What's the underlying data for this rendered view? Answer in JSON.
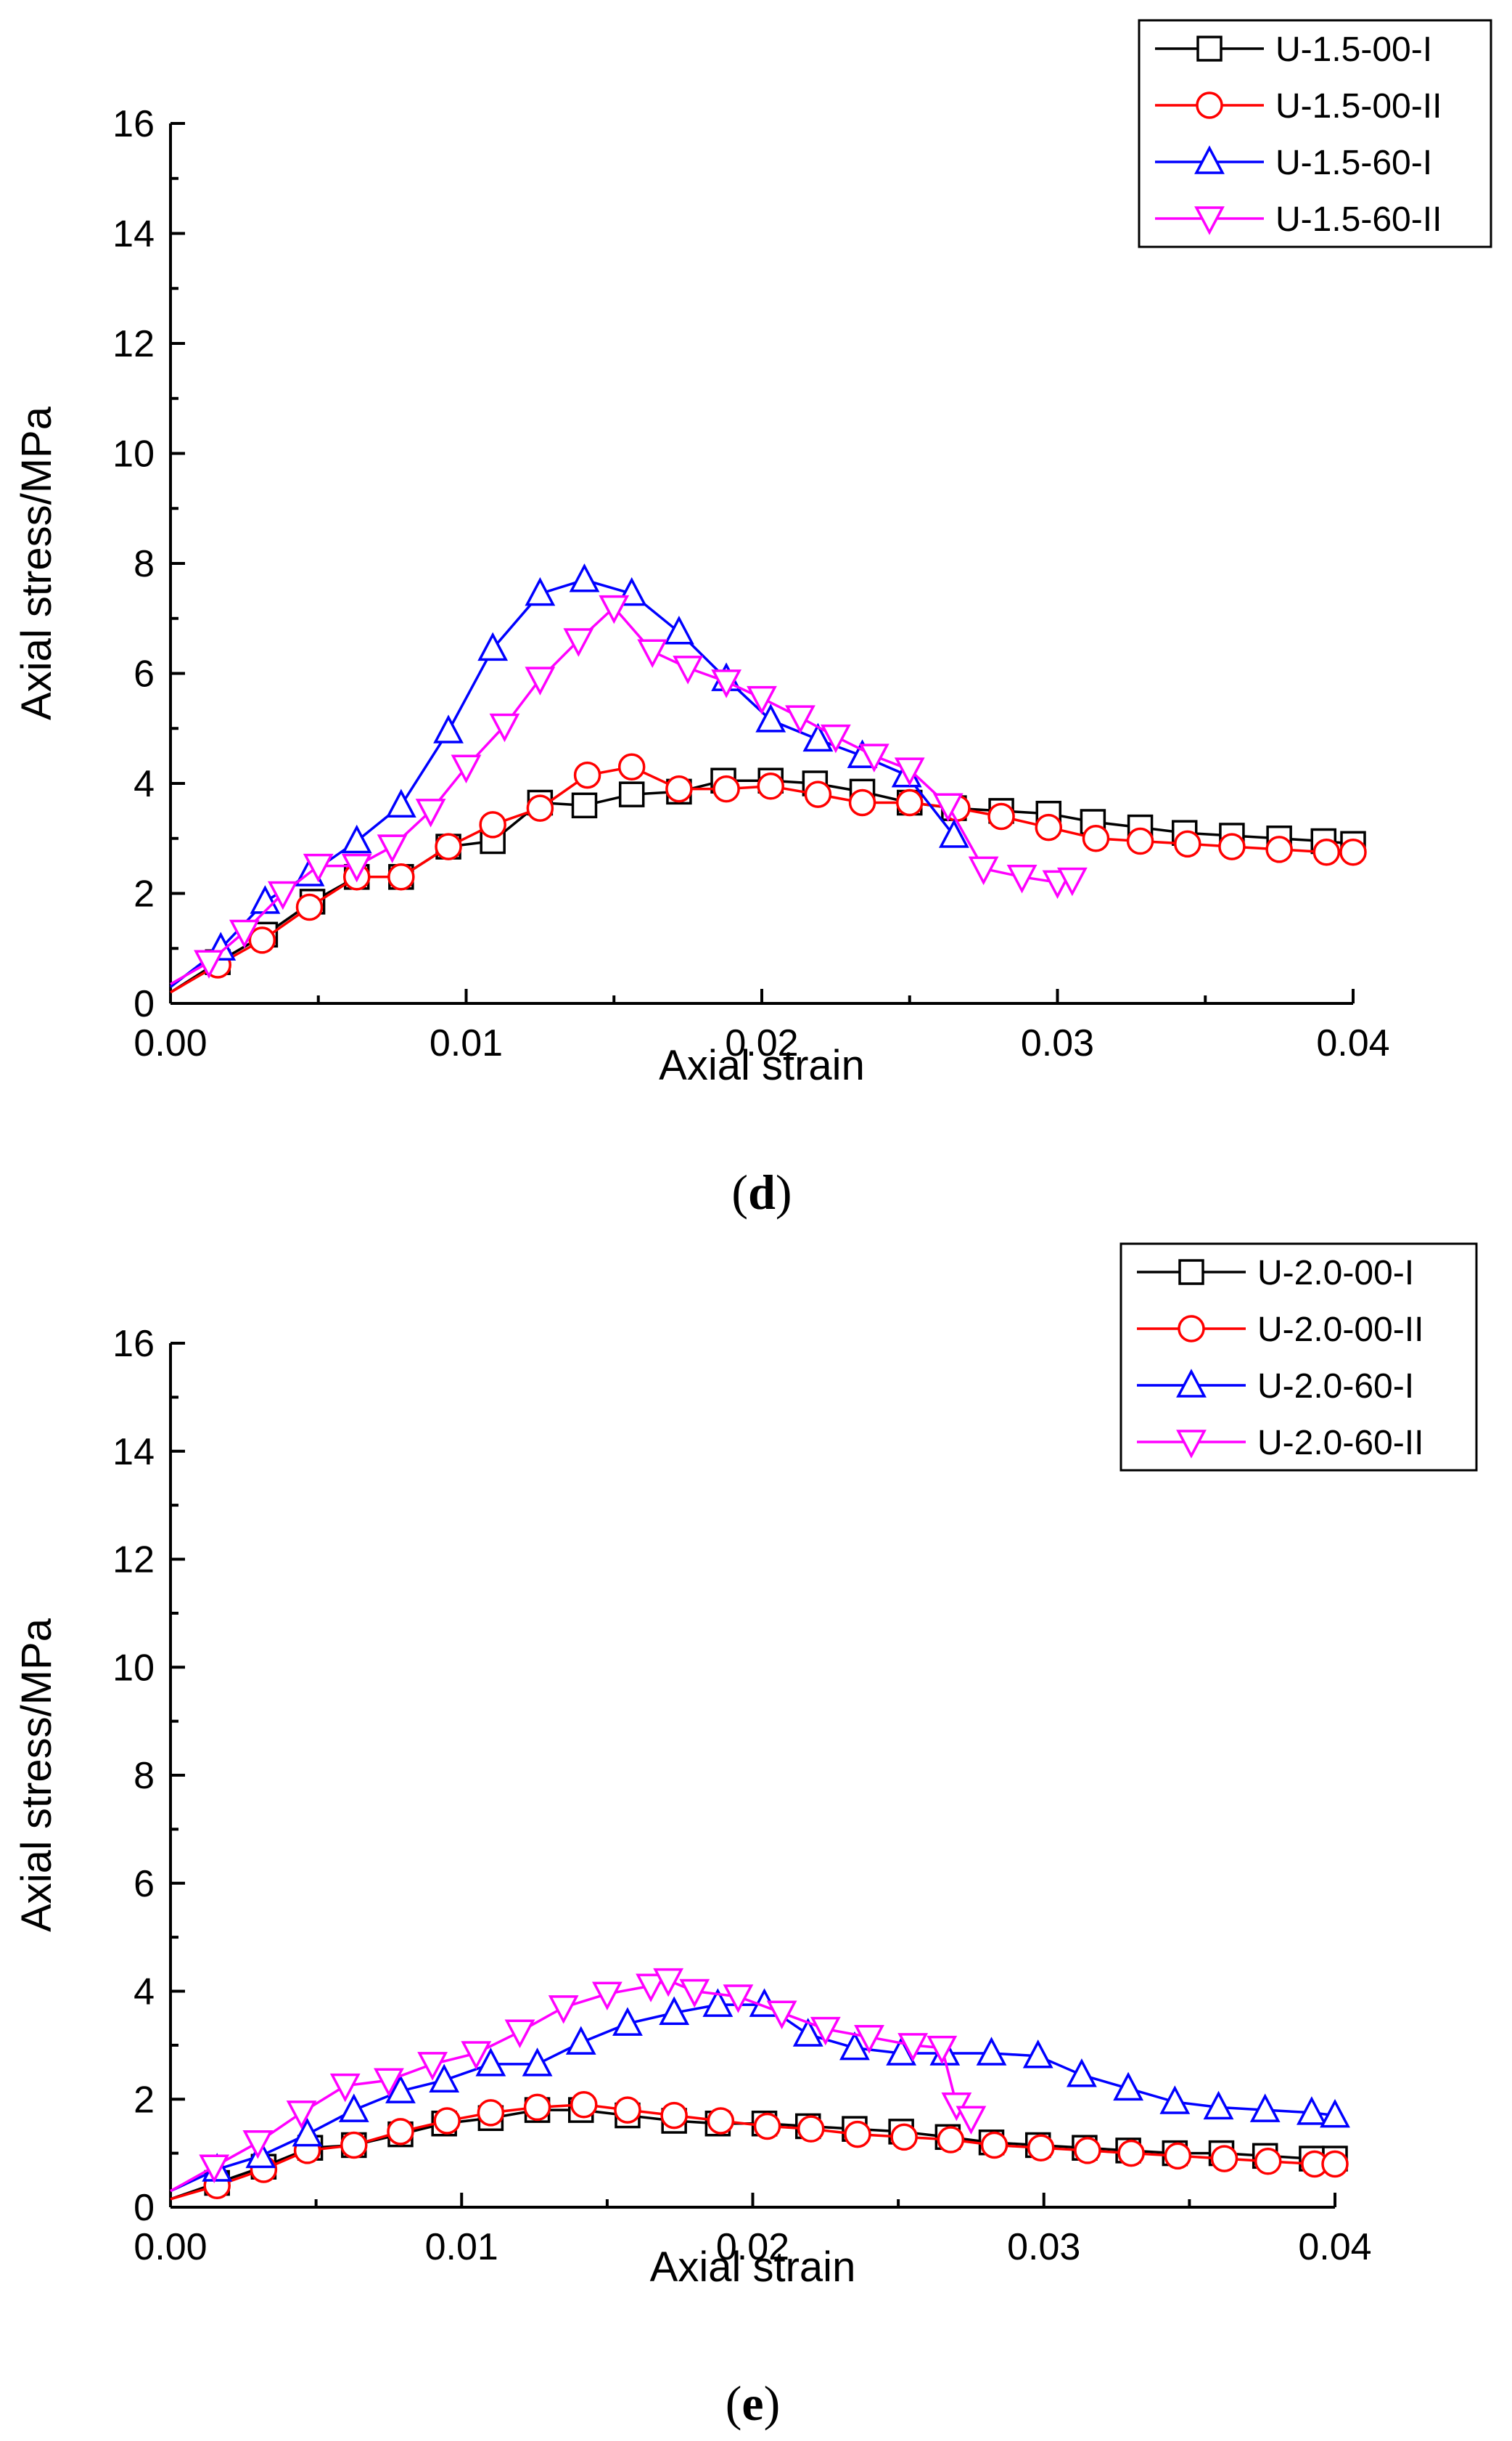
{
  "chart_data": [
    {
      "type": "line",
      "panel_label": "d",
      "xlabel": "Axial  strain",
      "ylabel": "Axial stress/MPa",
      "xlim": [
        0.0,
        0.04
      ],
      "ylim": [
        0,
        16
      ],
      "x_ticks": [
        0.0,
        0.01,
        0.02,
        0.03,
        0.04
      ],
      "x_tick_labels": [
        "0.00",
        "0.01",
        "0.02",
        "0.03",
        "0.04"
      ],
      "y_ticks": [
        0,
        2,
        4,
        6,
        8,
        10,
        12,
        14,
        16
      ],
      "y_tick_labels": [
        "0",
        "2",
        "4",
        "6",
        "8",
        "10",
        "12",
        "14",
        "16"
      ],
      "legend_position": "top-right",
      "series": [
        {
          "name": "U-1.5-00-I",
          "color": "#000000",
          "marker": "square",
          "x": [
            0.0,
            0.0016,
            0.0032,
            0.0048,
            0.0063,
            0.0078,
            0.0094,
            0.0109,
            0.0125,
            0.014,
            0.0156,
            0.0172,
            0.0187,
            0.0203,
            0.0218,
            0.0234,
            0.025,
            0.0265,
            0.0281,
            0.0297,
            0.0312,
            0.0328,
            0.0343,
            0.0359,
            0.0375,
            0.039,
            0.04
          ],
          "y": [
            0.2,
            0.75,
            1.25,
            1.85,
            2.3,
            2.3,
            2.85,
            2.95,
            3.65,
            3.6,
            3.8,
            3.85,
            4.05,
            4.05,
            4.0,
            3.85,
            3.65,
            3.55,
            3.5,
            3.45,
            3.3,
            3.2,
            3.1,
            3.05,
            3.0,
            2.95,
            2.9
          ]
        },
        {
          "name": "U-1.5-00-II",
          "color": "#ff0000",
          "marker": "circle",
          "x": [
            0.0,
            0.0016,
            0.0031,
            0.0047,
            0.0063,
            0.0078,
            0.0094,
            0.0109,
            0.0125,
            0.0141,
            0.0156,
            0.0172,
            0.0188,
            0.0203,
            0.0219,
            0.0234,
            0.025,
            0.0266,
            0.0281,
            0.0297,
            0.0313,
            0.0328,
            0.0344,
            0.0359,
            0.0375,
            0.0391,
            0.04
          ],
          "y": [
            0.2,
            0.7,
            1.15,
            1.75,
            2.3,
            2.3,
            2.85,
            3.25,
            3.55,
            4.15,
            4.3,
            3.9,
            3.9,
            3.95,
            3.8,
            3.65,
            3.65,
            3.55,
            3.4,
            3.2,
            3.0,
            2.95,
            2.9,
            2.85,
            2.8,
            2.75,
            2.75
          ]
        },
        {
          "name": "U-1.5-60-I",
          "color": "#0000ff",
          "marker": "triangle-up",
          "x": [
            0.0,
            0.0017,
            0.0032,
            0.0047,
            0.0063,
            0.0078,
            0.0094,
            0.0109,
            0.0125,
            0.014,
            0.0156,
            0.0172,
            0.0188,
            0.0203,
            0.0219,
            0.0234,
            0.0249,
            0.0265
          ],
          "y": [
            0.3,
            1.0,
            1.85,
            2.35,
            2.95,
            3.6,
            4.95,
            6.45,
            7.45,
            7.7,
            7.45,
            6.75,
            5.9,
            5.15,
            4.8,
            4.5,
            4.15,
            3.05
          ]
        },
        {
          "name": "U-1.5-60-II",
          "color": "#ff00ff",
          "marker": "triangle-down",
          "x": [
            0.0,
            0.0013,
            0.0025,
            0.0038,
            0.005,
            0.0063,
            0.0075,
            0.0088,
            0.01,
            0.0113,
            0.0125,
            0.0138,
            0.015,
            0.0163,
            0.0175,
            0.0188,
            0.02,
            0.0213,
            0.0225,
            0.0238,
            0.025,
            0.0263,
            0.0275,
            0.0288,
            0.03,
            0.0305
          ],
          "y": [
            0.35,
            0.75,
            1.3,
            2.0,
            2.5,
            2.5,
            2.85,
            3.5,
            4.3,
            5.05,
            5.9,
            6.6,
            7.2,
            6.4,
            6.1,
            5.85,
            5.55,
            5.2,
            4.85,
            4.5,
            4.25,
            3.6,
            2.45,
            2.3,
            2.2,
            2.25
          ]
        }
      ]
    },
    {
      "type": "line",
      "panel_label": "e",
      "xlabel": "Axial  strain",
      "ylabel": "Axial stress/MPa",
      "xlim": [
        0.0,
        0.04
      ],
      "ylim": [
        0,
        16
      ],
      "x_ticks": [
        0.0,
        0.01,
        0.02,
        0.03,
        0.04
      ],
      "x_tick_labels": [
        "0.00",
        "0.01",
        "0.02",
        "0.03",
        "0.04"
      ],
      "y_ticks": [
        0,
        2,
        4,
        6,
        8,
        10,
        12,
        14,
        16
      ],
      "y_tick_labels": [
        "0",
        "2",
        "4",
        "6",
        "8",
        "10",
        "12",
        "14",
        "16"
      ],
      "legend_position": "top-right",
      "series": [
        {
          "name": "U-2.0-00-I",
          "color": "#000000",
          "marker": "square",
          "x": [
            0.0,
            0.0016,
            0.0032,
            0.0048,
            0.0063,
            0.0079,
            0.0094,
            0.011,
            0.0126,
            0.0141,
            0.0157,
            0.0173,
            0.0188,
            0.0204,
            0.0219,
            0.0235,
            0.0251,
            0.0267,
            0.0282,
            0.0298,
            0.0314,
            0.0329,
            0.0345,
            0.0361,
            0.0376,
            0.0392,
            0.04
          ],
          "y": [
            0.15,
            0.45,
            0.75,
            1.1,
            1.15,
            1.35,
            1.55,
            1.65,
            1.8,
            1.8,
            1.7,
            1.6,
            1.55,
            1.55,
            1.5,
            1.45,
            1.4,
            1.3,
            1.2,
            1.15,
            1.1,
            1.05,
            1.0,
            1.0,
            0.95,
            0.9,
            0.9
          ]
        },
        {
          "name": "U-2.0-00-II",
          "color": "#ff0000",
          "marker": "circle",
          "x": [
            0.0,
            0.0016,
            0.0032,
            0.0047,
            0.0063,
            0.0079,
            0.0095,
            0.011,
            0.0126,
            0.0142,
            0.0157,
            0.0173,
            0.0189,
            0.0205,
            0.022,
            0.0236,
            0.0252,
            0.0268,
            0.0283,
            0.0299,
            0.0315,
            0.033,
            0.0346,
            0.0362,
            0.0377,
            0.0393,
            0.04
          ],
          "y": [
            0.15,
            0.4,
            0.7,
            1.05,
            1.15,
            1.4,
            1.6,
            1.75,
            1.85,
            1.9,
            1.8,
            1.7,
            1.6,
            1.5,
            1.45,
            1.35,
            1.3,
            1.25,
            1.15,
            1.1,
            1.05,
            1.0,
            0.95,
            0.9,
            0.85,
            0.8,
            0.8
          ]
        },
        {
          "name": "U-2.0-60-I",
          "color": "#0000ff",
          "marker": "triangle-up",
          "x": [
            0.0,
            0.0016,
            0.0031,
            0.0047,
            0.0063,
            0.0079,
            0.0094,
            0.011,
            0.0126,
            0.0141,
            0.0157,
            0.0173,
            0.0188,
            0.0204,
            0.0219,
            0.0235,
            0.0251,
            0.0266,
            0.0282,
            0.0298,
            0.0313,
            0.0329,
            0.0345,
            0.036,
            0.0376,
            0.0392,
            0.04
          ],
          "y": [
            0.3,
            0.7,
            0.95,
            1.35,
            1.8,
            2.15,
            2.35,
            2.65,
            2.65,
            3.05,
            3.4,
            3.6,
            3.75,
            3.75,
            3.2,
            2.95,
            2.85,
            2.85,
            2.85,
            2.8,
            2.45,
            2.2,
            1.95,
            1.85,
            1.8,
            1.75,
            1.7
          ]
        },
        {
          "name": "U-2.0-60-II",
          "color": "#ff00ff",
          "marker": "triangle-down",
          "x": [
            0.0,
            0.0015,
            0.003,
            0.0045,
            0.006,
            0.0075,
            0.009,
            0.0105,
            0.012,
            0.0135,
            0.015,
            0.0165,
            0.0171,
            0.018,
            0.0195,
            0.021,
            0.0225,
            0.024,
            0.0255,
            0.0265,
            0.027,
            0.0275
          ],
          "y": [
            0.3,
            0.75,
            1.2,
            1.75,
            2.25,
            2.35,
            2.65,
            2.85,
            3.25,
            3.7,
            3.95,
            4.1,
            4.2,
            4.0,
            3.9,
            3.6,
            3.3,
            3.15,
            3.0,
            2.95,
            1.9,
            1.65
          ]
        }
      ]
    }
  ]
}
